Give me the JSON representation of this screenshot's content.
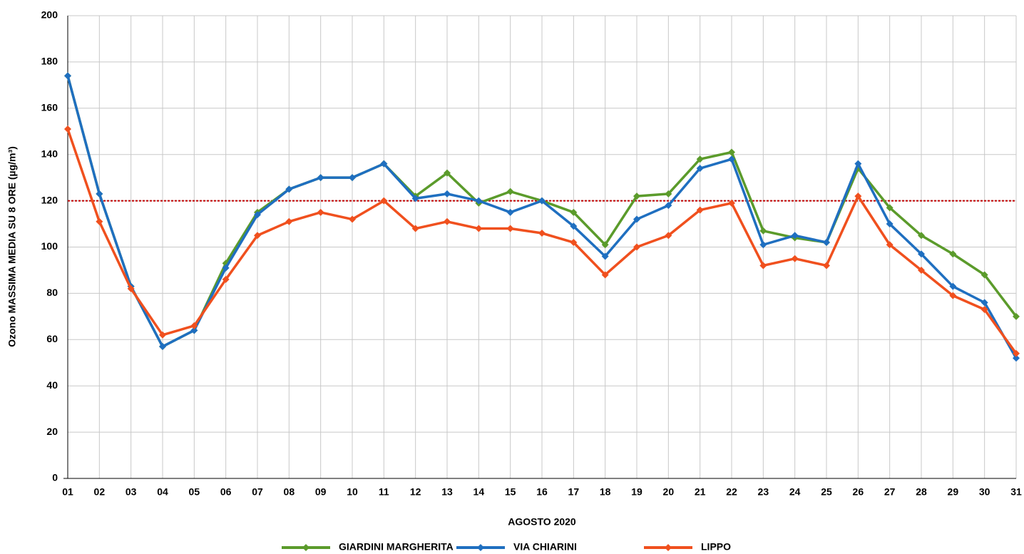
{
  "chart_data": {
    "type": "line",
    "y_label": "Ozono MASSIMA MEDIA SU 8 ORE (µg/m³)",
    "x_label": "AGOSTO 2020",
    "categories": [
      "01",
      "02",
      "03",
      "04",
      "05",
      "06",
      "07",
      "08",
      "09",
      "10",
      "11",
      "12",
      "13",
      "14",
      "15",
      "16",
      "17",
      "18",
      "19",
      "20",
      "21",
      "22",
      "23",
      "24",
      "25",
      "26",
      "27",
      "28",
      "29",
      "30",
      "31"
    ],
    "series": [
      {
        "name": "GIARDINI MARGHERITA",
        "color": "#5b9b2b",
        "values": [
          174,
          123,
          83,
          57,
          64,
          93,
          115,
          125,
          130,
          130,
          136,
          122,
          132,
          119,
          124,
          120,
          115,
          101,
          122,
          123,
          138,
          141,
          107,
          104,
          102,
          134,
          117,
          105,
          97,
          88,
          70
        ]
      },
      {
        "name": "VIA CHIARINI",
        "color": "#1f6fc0",
        "values": [
          174,
          123,
          83,
          57,
          64,
          91,
          114,
          125,
          130,
          130,
          136,
          121,
          123,
          120,
          115,
          120,
          109,
          96,
          112,
          118,
          134,
          138,
          101,
          105,
          102,
          136,
          110,
          97,
          83,
          76,
          52
        ]
      },
      {
        "name": "LIPPO",
        "color": "#f0501e",
        "values": [
          151,
          111,
          82,
          62,
          66,
          86,
          105,
          111,
          115,
          112,
          120,
          108,
          111,
          108,
          108,
          106,
          102,
          88,
          100,
          105,
          116,
          119,
          92,
          95,
          92,
          122,
          101,
          90,
          79,
          73,
          54
        ]
      }
    ],
    "reference_line": 120,
    "reference_color": "#c00000",
    "ylim": [
      0,
      200
    ],
    "yticks": [
      0,
      20,
      40,
      60,
      80,
      100,
      120,
      140,
      160,
      180,
      200
    ],
    "grid": true
  }
}
